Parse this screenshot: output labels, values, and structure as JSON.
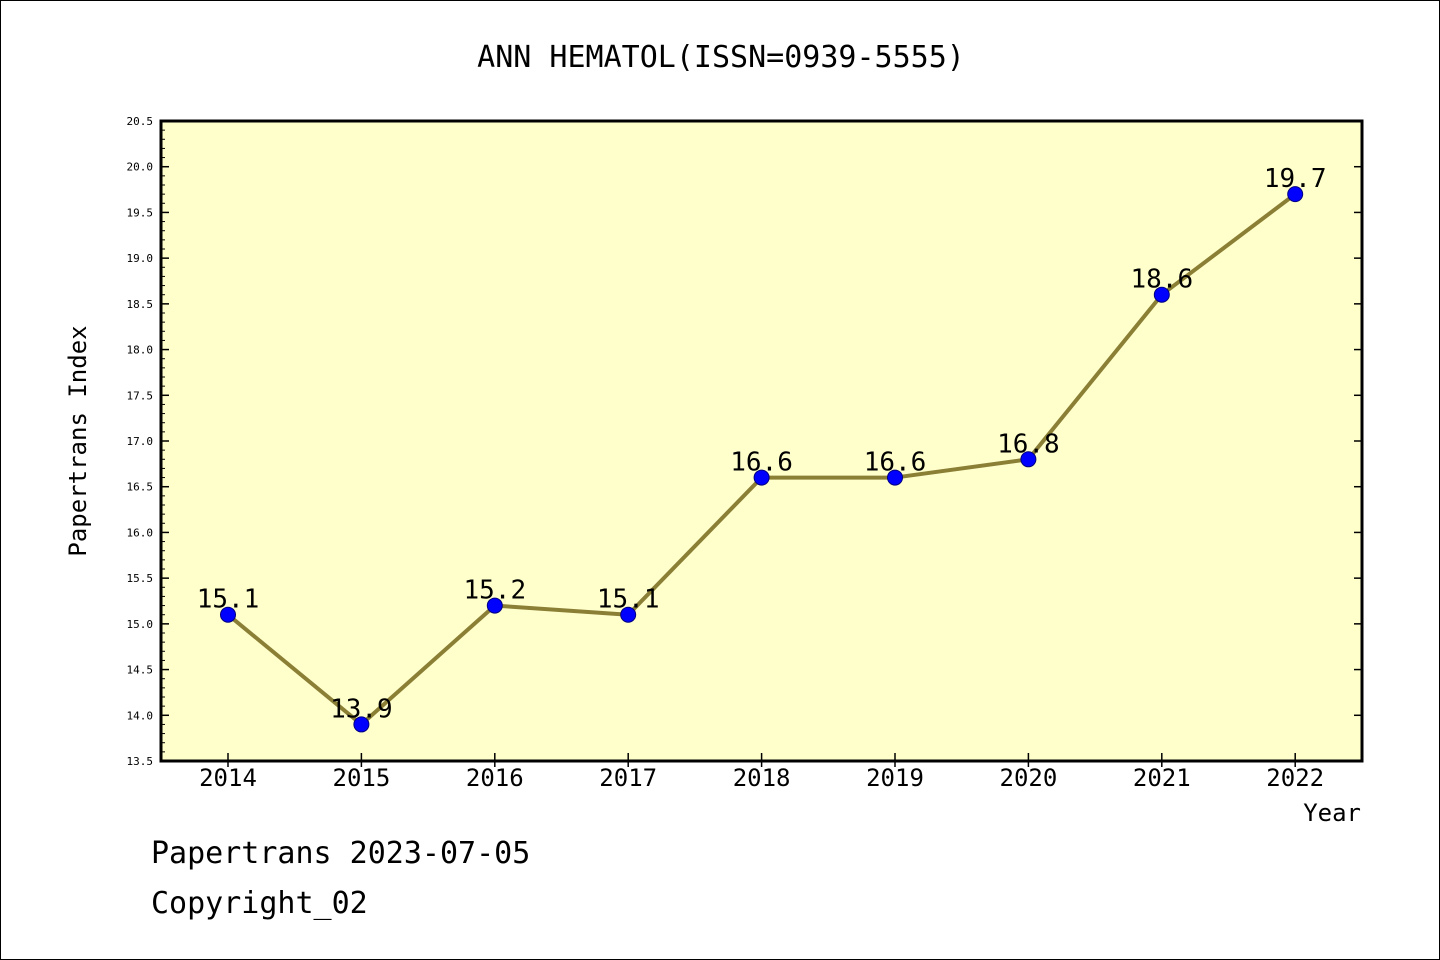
{
  "chart_data": {
    "type": "line",
    "title": "ANN HEMATOL(ISSN=0939-5555)",
    "xlabel": "Year",
    "ylabel": "Papertrans Index",
    "categories": [
      "2014",
      "2015",
      "2016",
      "2017",
      "2018",
      "2019",
      "2020",
      "2021",
      "2022"
    ],
    "series": [
      {
        "values": [
          15.1,
          13.9,
          15.2,
          15.1,
          16.6,
          16.6,
          16.8,
          18.6,
          19.7
        ],
        "labels": [
          "15.1",
          "13.9",
          "15.2",
          "15.1",
          "16.6",
          "16.6",
          "16.8",
          "18.6",
          "19.7"
        ]
      }
    ],
    "ylim": [
      13.5,
      20.5
    ],
    "yticks": [
      "13.5",
      "14.0",
      "14.5",
      "15.0",
      "15.5",
      "16.0",
      "16.5",
      "17.0",
      "17.5",
      "18.0",
      "18.5",
      "19.0",
      "19.5",
      "20.0",
      "20.5"
    ],
    "grid": false,
    "colors": {
      "plot_background": "#ffffcc",
      "line": "#8b7f36",
      "marker": "#0000ff"
    }
  },
  "footer": {
    "line1": "Papertrans 2023-07-05",
    "line2": "Copyright_02"
  }
}
